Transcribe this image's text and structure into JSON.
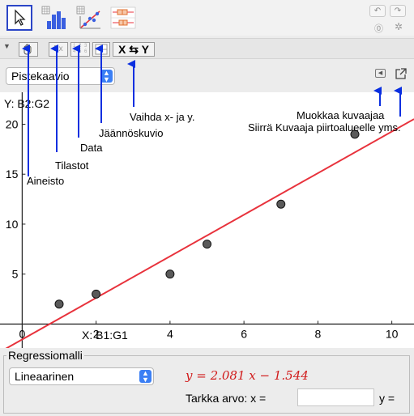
{
  "toolbar": {
    "tools": [
      "move-tool",
      "histogram-tool",
      "scatter-plot-tool",
      "box-plot-tool"
    ]
  },
  "subtoolbar": {
    "sigma_label": "Σx",
    "data_glyph": "1 2 3 4 5 6",
    "swap_label": "X ⇆ Y"
  },
  "plot_type": {
    "selected": "Pistekaavio"
  },
  "y_source_label": "Y:  B2:G2",
  "x_source_label": "X:  B1:G1",
  "annotations": {
    "aineisto": "Aineisto",
    "tilastot": "Tilastot",
    "data": "Data",
    "jaannoskuvio": "Jäännöskuvio",
    "vaihda": "Vaihda x- ja y.",
    "muokkaa": "Muokkaa kuvaajaa",
    "siirra": "Siirrä Kuvaaja piirtoalueelle yms."
  },
  "colors": {
    "arrow": "#0a2fe0",
    "regression_line": "#e8323c",
    "selected_tool_border": "#2b45c7",
    "dropdown_arrow": "#3b7ff4",
    "formula": "#d11b1b"
  },
  "chart_data": {
    "type": "scatter",
    "x": [
      1,
      2,
      4,
      5,
      7,
      9
    ],
    "y": [
      2,
      3,
      5,
      8,
      12,
      19
    ],
    "xlim": [
      -0.6,
      10.6
    ],
    "ylim": [
      -2.4,
      23.2
    ],
    "x_ticks": [
      "0",
      "2",
      "4",
      "6",
      "8",
      "10"
    ],
    "y_ticks": [
      "5",
      "10",
      "15",
      "20"
    ],
    "regression": {
      "slope": 2.081,
      "intercept": -1.544
    }
  },
  "regression": {
    "title": "Regressiomalli",
    "model_selected": "Lineaarinen",
    "formula": "y = 2.081 x − 1.544",
    "precise_label": "Tarkka arvo:  x =",
    "x_value": "",
    "y_label": "y ="
  }
}
